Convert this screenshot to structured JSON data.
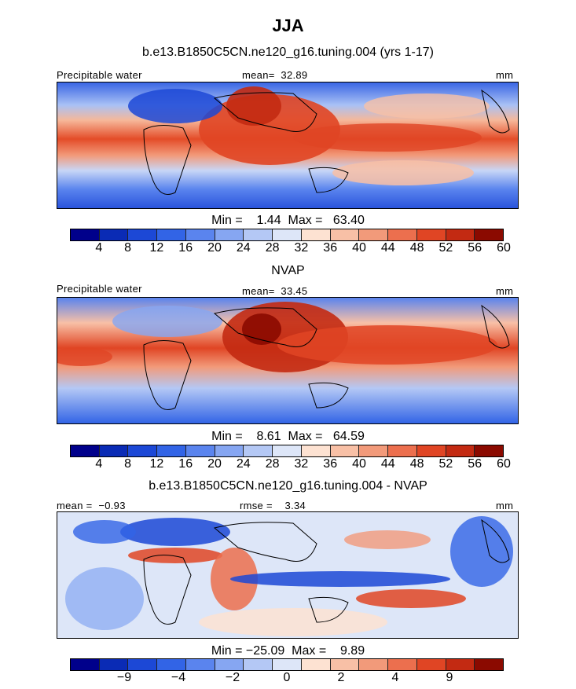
{
  "title": "JJA",
  "panels": [
    {
      "subtitle": "b.e13.B1850C5CN.ne120_g16.tuning.004 (yrs 1-17)",
      "left_label": "Precipitable water",
      "center_label": "mean=  32.89",
      "right_label": "mm",
      "minmax": "Min =    1.44  Max =   63.40",
      "ticks": [
        "4",
        "8",
        "12",
        "16",
        "20",
        "24",
        "28",
        "32",
        "36",
        "40",
        "44",
        "48",
        "52",
        "56",
        "60"
      ]
    },
    {
      "subtitle": "NVAP",
      "left_label": "Precipitable water",
      "center_label": "mean=  33.45",
      "right_label": "mm",
      "minmax": "Min =    8.61  Max =   64.59",
      "ticks": [
        "4",
        "8",
        "12",
        "16",
        "20",
        "24",
        "28",
        "32",
        "36",
        "40",
        "44",
        "48",
        "52",
        "56",
        "60"
      ]
    },
    {
      "subtitle": "b.e13.B1850C5CN.ne120_g16.tuning.004 - NVAP",
      "left_label": "mean =  −0.93",
      "center_label": "rmse =    3.34",
      "right_label": "mm",
      "minmax": "Min = −25.09  Max =    9.89",
      "ticks": [
        "−9",
        "−4",
        "−2",
        "0",
        "2",
        "4",
        "9"
      ]
    }
  ],
  "colorbar_colors": [
    "#00008b",
    "#0a2bb5",
    "#1c48d6",
    "#3264e6",
    "#5a84ee",
    "#86a6f2",
    "#b4c8f5",
    "#dde6f8",
    "#fde2d2",
    "#f8c0a6",
    "#f29a7a",
    "#ec6f4e",
    "#e04524",
    "#c32a12",
    "#8b0a00"
  ]
}
